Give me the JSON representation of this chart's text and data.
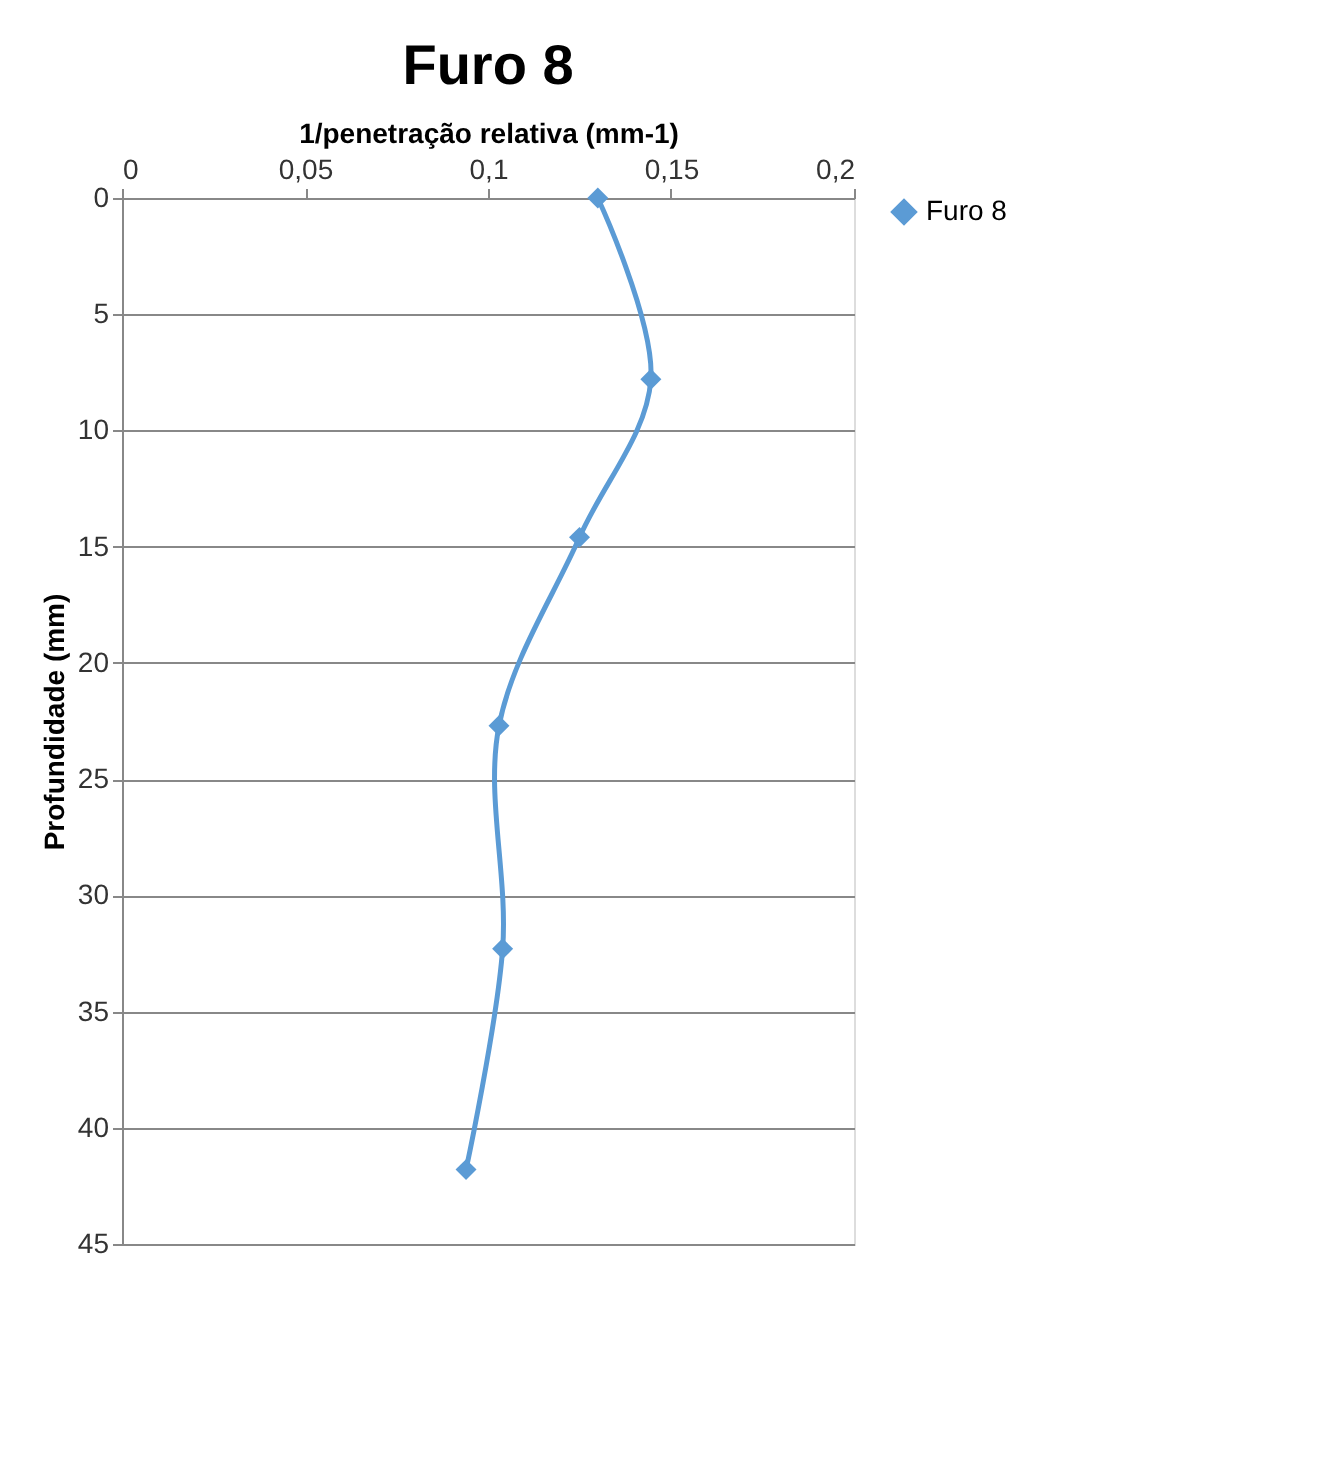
{
  "chart_data": {
    "type": "line",
    "title": "Furo 8",
    "xlabel": "1/penetração relativa (mm-1)",
    "ylabel": "Profundidade  (mm)",
    "x": [
      0.13,
      0.1445,
      0.125,
      0.103,
      0.104,
      0.094
    ],
    "series": [
      {
        "name": "Furo 8",
        "color": "#5b9bd5",
        "values": [
          0,
          7.8,
          14.6,
          22.7,
          32.3,
          41.8
        ]
      }
    ],
    "xlim": [
      0,
      0.2
    ],
    "xticks": [
      0,
      {
        "value": 0.05,
        "label": "0,05"
      },
      {
        "value": 0.1,
        "label": "0,1"
      },
      {
        "value": 0.15,
        "label": "0,15"
      },
      {
        "value": 0.2,
        "label": "0,2"
      }
    ],
    "ylim": [
      45,
      0
    ],
    "yticks": [
      0,
      5,
      10,
      15,
      20,
      25,
      30,
      35,
      40,
      45
    ],
    "grid": "y",
    "legend": "right",
    "marker": "diamond",
    "line_style": "solid"
  }
}
